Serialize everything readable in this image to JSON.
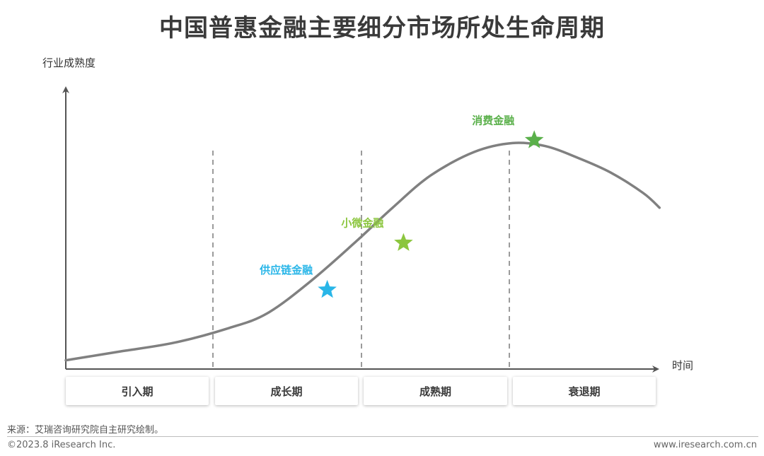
{
  "title": "中国普惠金融主要细分市场所处生命周期",
  "source": "来源：艾瑞咨询研究院自主研究绘制。",
  "footer": {
    "copyright": "©2023.8 iResearch Inc.",
    "website": "www.iresearch.com.cn"
  },
  "colors": {
    "curve": "#808080",
    "axis": "#555555",
    "divider_line": "#7a7a7a",
    "supply_chain": "#29b6e8",
    "micro": "#8cc63f",
    "consumer": "#5ab04a"
  },
  "chart_data": {
    "type": "line",
    "title": "中国普惠金融主要细分市场所处生命周期",
    "xlabel": "时间",
    "ylabel": "行业成熟度",
    "ticks_shown": false,
    "grid": false,
    "stages": [
      "引入期",
      "成长期",
      "成熟期",
      "衰退期"
    ],
    "curve": [
      {
        "t": 0.0,
        "v": 0.03
      },
      {
        "t": 0.1,
        "v": 0.06
      },
      {
        "t": 0.2,
        "v": 0.09
      },
      {
        "t": 0.3,
        "v": 0.14
      },
      {
        "t": 0.37,
        "v": 0.19
      },
      {
        "t": 0.45,
        "v": 0.3
      },
      {
        "t": 0.53,
        "v": 0.43
      },
      {
        "t": 0.6,
        "v": 0.55
      },
      {
        "t": 0.67,
        "v": 0.66
      },
      {
        "t": 0.75,
        "v": 0.74
      },
      {
        "t": 0.82,
        "v": 0.77
      },
      {
        "t": 0.88,
        "v": 0.76
      },
      {
        "t": 0.94,
        "v": 0.72
      },
      {
        "t": 1.0,
        "v": 0.67
      },
      {
        "t": 1.06,
        "v": 0.6
      },
      {
        "t": 1.09,
        "v": 0.55
      }
    ],
    "markers": [
      {
        "label": "供应链金融",
        "t": 0.48,
        "v": 0.27,
        "color": "#29b6e8"
      },
      {
        "label": "小微金融",
        "t": 0.62,
        "v": 0.43,
        "color": "#8cc63f"
      },
      {
        "label": "消费金融",
        "t": 0.86,
        "v": 0.78,
        "color": "#5ab04a"
      }
    ]
  }
}
